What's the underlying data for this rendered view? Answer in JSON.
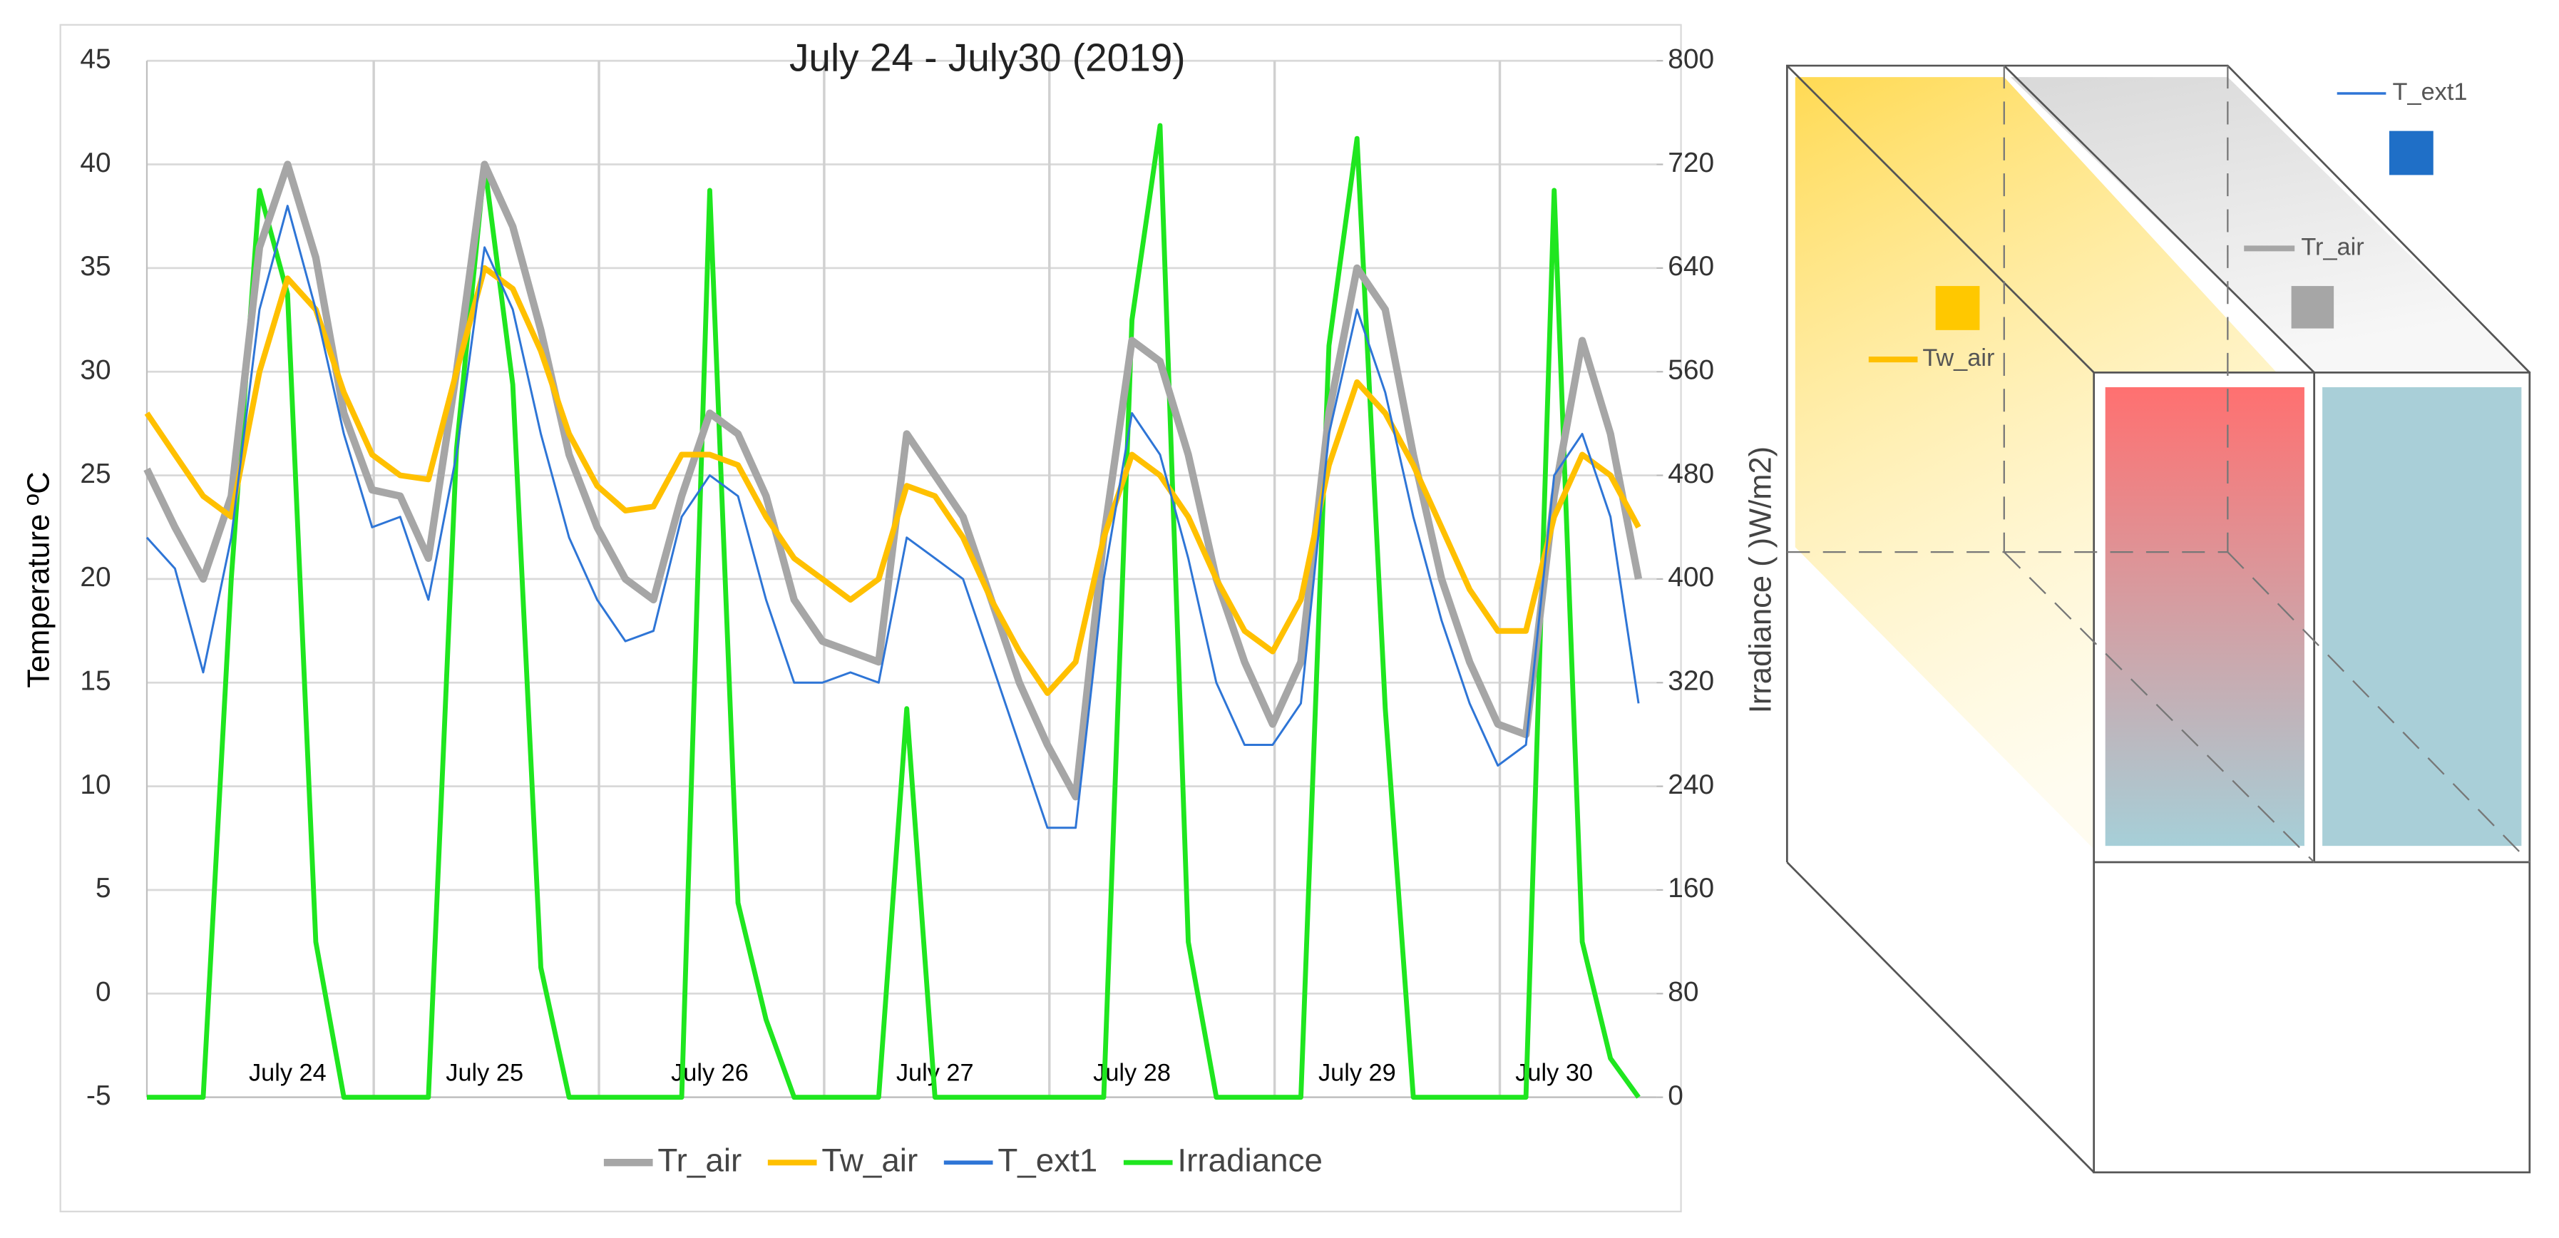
{
  "chart_data": {
    "type": "line",
    "title": "July 24 - July30 (2019)",
    "y_label": "Temperature ºC",
    "y2_label": "Irradiance ( )W/m2)",
    "categories": [
      null,
      null,
      null,
      null,
      null,
      "July 24",
      null,
      null,
      null,
      null,
      null,
      null,
      "July 25",
      null,
      null,
      null,
      null,
      null,
      null,
      null,
      "July 26",
      null,
      null,
      null,
      null,
      null,
      null,
      null,
      "July 27",
      null,
      null,
      null,
      null,
      null,
      null,
      "July 28",
      null,
      null,
      null,
      null,
      null,
      null,
      null,
      "July 29",
      null,
      null,
      null,
      null,
      null,
      null,
      "July 30",
      null,
      null,
      null
    ],
    "series": [
      {
        "name": "Tr_air",
        "color": "#a6a6a6",
        "values": [
          25.3,
          22.5,
          20,
          24,
          36,
          40,
          35.5,
          28,
          24.3,
          24,
          21,
          30,
          40,
          37,
          32,
          26,
          22.5,
          20,
          19,
          24,
          28,
          27,
          24,
          19,
          17,
          16.5,
          16,
          27,
          25,
          23,
          19,
          15,
          12,
          9.5,
          22,
          31.5,
          30.5,
          26,
          20,
          16,
          13,
          16,
          28,
          35,
          33,
          26,
          20,
          16,
          13,
          12.5,
          24,
          31.5,
          27,
          20
        ]
      },
      {
        "name": "Tw_air",
        "color": "#ffc000",
        "values": [
          28,
          26,
          24,
          23,
          30,
          34.5,
          33,
          29,
          26,
          25,
          24.8,
          30,
          35,
          34,
          31,
          27,
          24.5,
          23.3,
          23.5,
          26,
          26,
          25.5,
          23,
          21,
          20,
          19,
          20,
          24.5,
          24,
          22,
          19,
          16.5,
          14.5,
          16,
          22,
          26,
          25,
          23,
          20,
          17.5,
          16.5,
          19,
          25.5,
          29.5,
          28,
          25.5,
          22.5,
          19.5,
          17.5,
          17.5,
          23,
          26,
          25,
          22.5
        ]
      },
      {
        "name": "T_ext1",
        "color": "#2e75d6",
        "values": [
          22,
          20.5,
          15.5,
          22,
          33,
          38,
          33,
          27,
          22.5,
          23,
          19,
          26,
          36,
          33,
          27,
          22,
          19,
          17,
          17.5,
          23,
          25,
          24,
          19,
          15,
          15,
          15.5,
          15,
          22,
          21,
          20,
          16,
          12,
          8,
          8,
          20,
          28,
          26,
          21,
          15,
          12,
          12,
          14,
          27,
          33,
          29,
          23,
          18,
          14,
          11,
          12,
          25,
          27,
          23,
          14
        ]
      },
      {
        "name": "Irradiance",
        "color": "#1fe61f",
        "axis": "y2",
        "values": [
          0,
          0,
          0,
          400,
          700,
          620,
          120,
          0,
          0,
          0,
          0,
          500,
          720,
          550,
          100,
          0,
          0,
          0,
          0,
          0,
          700,
          150,
          60,
          0,
          0,
          0,
          0,
          300,
          0,
          0,
          0,
          0,
          0,
          0,
          0,
          600,
          750,
          120,
          0,
          0,
          0,
          0,
          580,
          740,
          300,
          0,
          0,
          0,
          0,
          0,
          700,
          120,
          30,
          0
        ]
      }
    ],
    "ylim": [
      -5,
      45
    ],
    "yticks": [
      -5,
      0,
      5,
      10,
      15,
      20,
      25,
      30,
      35,
      40,
      45
    ],
    "y2lim": [
      0,
      800
    ],
    "y2ticks": [
      0,
      80,
      160,
      240,
      320,
      400,
      480,
      560,
      640,
      720,
      800
    ],
    "grid": true,
    "legend": "bottom"
  },
  "diagram": {
    "labels": [
      "T_ext1",
      "Tr_air",
      "Tw_air"
    ]
  }
}
